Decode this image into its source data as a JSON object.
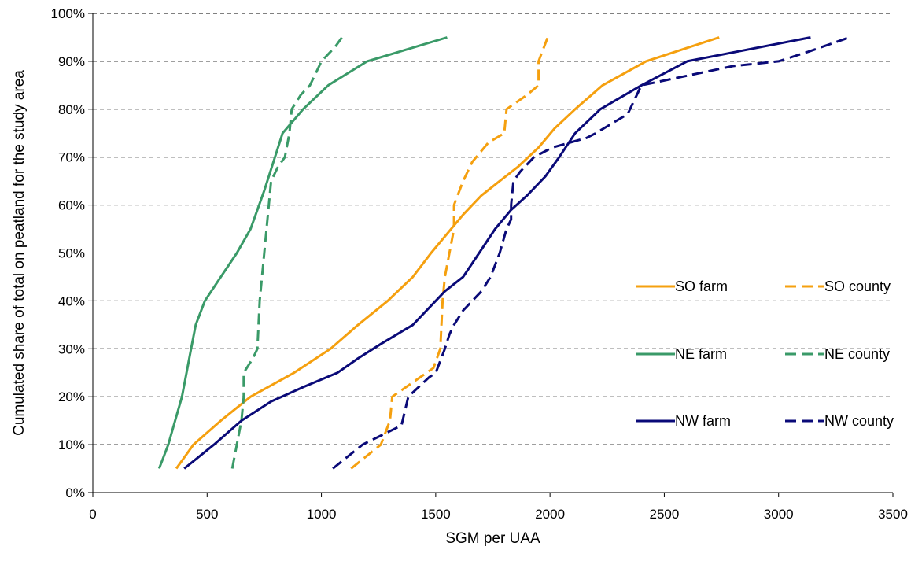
{
  "chart_data": {
    "type": "line",
    "xlabel": "SGM per UAA",
    "ylabel": "Cumulated share of total  on peatland for the study area",
    "xlim": [
      0,
      3500
    ],
    "ylim": [
      0,
      100
    ],
    "x_ticks": [
      0,
      500,
      1000,
      1500,
      2000,
      2500,
      3000,
      3500
    ],
    "y_ticks": [
      0,
      10,
      20,
      30,
      40,
      50,
      60,
      70,
      80,
      90,
      100
    ],
    "y_tick_labels": [
      "0%",
      "10%",
      "20%",
      "30%",
      "40%",
      "50%",
      "60%",
      "70%",
      "80%",
      "90%",
      "100%"
    ],
    "grid": "horizontal dashed",
    "legend_position": "right",
    "series": [
      {
        "name": "SO farm",
        "color": "#f5a00f",
        "dash": "solid",
        "points": [
          [
            365,
            5
          ],
          [
            440,
            10
          ],
          [
            560,
            15
          ],
          [
            690,
            20
          ],
          [
            880,
            25
          ],
          [
            1040,
            30
          ],
          [
            1160,
            35
          ],
          [
            1290,
            40
          ],
          [
            1400,
            45
          ],
          [
            1480,
            50
          ],
          [
            1550,
            54
          ],
          [
            1620,
            58
          ],
          [
            1700,
            62
          ],
          [
            1780,
            65
          ],
          [
            1860,
            68
          ],
          [
            1950,
            72
          ],
          [
            2020,
            76
          ],
          [
            2110,
            80
          ],
          [
            2230,
            85
          ],
          [
            2420,
            90
          ],
          [
            2740,
            95
          ]
        ]
      },
      {
        "name": "SO county",
        "color": "#f5a00f",
        "dash": "dashed",
        "points": [
          [
            1130,
            5
          ],
          [
            1260,
            10
          ],
          [
            1300,
            15
          ],
          [
            1310,
            20
          ],
          [
            1400,
            23
          ],
          [
            1490,
            26
          ],
          [
            1520,
            30
          ],
          [
            1530,
            40
          ],
          [
            1540,
            45
          ],
          [
            1560,
            50
          ],
          [
            1580,
            55
          ],
          [
            1580,
            60
          ],
          [
            1620,
            65
          ],
          [
            1660,
            69
          ],
          [
            1730,
            73
          ],
          [
            1800,
            75
          ],
          [
            1810,
            80
          ],
          [
            1900,
            83
          ],
          [
            1950,
            85
          ],
          [
            1950,
            90
          ],
          [
            1990,
            95
          ]
        ]
      },
      {
        "name": "NE farm",
        "color": "#3a9a68",
        "dash": "solid",
        "points": [
          [
            290,
            5
          ],
          [
            330,
            10
          ],
          [
            360,
            15
          ],
          [
            390,
            20
          ],
          [
            410,
            25
          ],
          [
            430,
            30
          ],
          [
            450,
            35
          ],
          [
            490,
            40
          ],
          [
            560,
            45
          ],
          [
            630,
            50
          ],
          [
            690,
            55
          ],
          [
            750,
            63
          ],
          [
            830,
            75
          ],
          [
            920,
            80
          ],
          [
            1030,
            85
          ],
          [
            1200,
            90
          ],
          [
            1550,
            95
          ]
        ]
      },
      {
        "name": "NE county",
        "color": "#3a9a68",
        "dash": "dashed",
        "points": [
          [
            610,
            5
          ],
          [
            650,
            15
          ],
          [
            660,
            20
          ],
          [
            660,
            25
          ],
          [
            700,
            28
          ],
          [
            720,
            30
          ],
          [
            730,
            40
          ],
          [
            750,
            50
          ],
          [
            770,
            60
          ],
          [
            780,
            65
          ],
          [
            810,
            68
          ],
          [
            840,
            70
          ],
          [
            860,
            75
          ],
          [
            870,
            80
          ],
          [
            910,
            83
          ],
          [
            950,
            85
          ],
          [
            980,
            88
          ],
          [
            1000,
            90
          ],
          [
            1060,
            93
          ],
          [
            1090,
            95
          ]
        ]
      },
      {
        "name": "NW farm",
        "color": "#0a0a78",
        "dash": "solid",
        "points": [
          [
            400,
            5
          ],
          [
            530,
            10
          ],
          [
            650,
            15
          ],
          [
            780,
            19
          ],
          [
            920,
            22
          ],
          [
            1070,
            25
          ],
          [
            1160,
            28
          ],
          [
            1260,
            31
          ],
          [
            1400,
            35
          ],
          [
            1540,
            42
          ],
          [
            1620,
            45
          ],
          [
            1690,
            50
          ],
          [
            1760,
            55
          ],
          [
            1830,
            59
          ],
          [
            1900,
            62
          ],
          [
            1980,
            66
          ],
          [
            2040,
            70
          ],
          [
            2110,
            75
          ],
          [
            2220,
            80
          ],
          [
            2400,
            85
          ],
          [
            2600,
            90
          ],
          [
            3140,
            95
          ]
        ]
      },
      {
        "name": "NW county",
        "color": "#0a0a78",
        "dash": "dashed",
        "points": [
          [
            1050,
            5
          ],
          [
            1180,
            10
          ],
          [
            1350,
            14
          ],
          [
            1370,
            18
          ],
          [
            1380,
            20
          ],
          [
            1470,
            24
          ],
          [
            1500,
            25
          ],
          [
            1540,
            30
          ],
          [
            1560,
            33
          ],
          [
            1580,
            35
          ],
          [
            1620,
            38
          ],
          [
            1700,
            42
          ],
          [
            1740,
            45
          ],
          [
            1780,
            50
          ],
          [
            1810,
            55
          ],
          [
            1830,
            57
          ],
          [
            1830,
            60
          ],
          [
            1840,
            65
          ],
          [
            1870,
            67
          ],
          [
            1930,
            70
          ],
          [
            2010,
            72
          ],
          [
            2160,
            74
          ],
          [
            2200,
            75
          ],
          [
            2340,
            79
          ],
          [
            2400,
            85
          ],
          [
            2800,
            89
          ],
          [
            3000,
            90
          ],
          [
            3130,
            92
          ],
          [
            3310,
            95
          ]
        ]
      }
    ]
  }
}
